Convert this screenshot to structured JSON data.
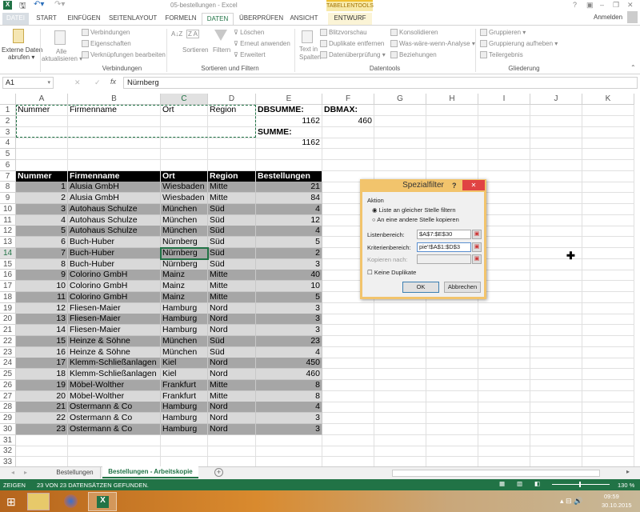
{
  "title": "05-bestellungen - Excel",
  "context_tab_group": "TABELLENTOOLS",
  "tabs": [
    "DATEI",
    "START",
    "EINFÜGEN",
    "SEITENLAYOUT",
    "FORMELN",
    "DATEN",
    "ÜBERPRÜFEN",
    "ANSICHT",
    "ENTWURF"
  ],
  "active_tab": "DATEN",
  "account": "Anmelden",
  "window_controls": [
    "?",
    "▣",
    "–",
    "❐",
    "✕"
  ],
  "ribbon": {
    "externe": [
      "Externe Daten",
      "abrufen ▾"
    ],
    "alle": [
      "Alle",
      "aktualisieren ▾"
    ],
    "verbindungen": [
      "Verbindungen",
      "Eigenschaften",
      "Verknüpfungen bearbeiten"
    ],
    "sort": [
      "Sortieren",
      "Filtern",
      "Löschen",
      "Erneut anwenden",
      "Erweitert"
    ],
    "text_in_spalten": [
      "Text in",
      "Spalten"
    ],
    "datentools": [
      "Blitzvorschau",
      "Duplikate entfernen",
      "Datenüberprüfung ▾",
      "Konsolidieren",
      "Was-wäre-wenn-Analyse ▾",
      "Beziehungen"
    ],
    "gliederung": [
      "Gruppieren ▾",
      "Gruppierung aufheben ▾",
      "Teilergebnis"
    ],
    "groups": [
      "Verbindungen",
      "Sortieren und Filtern",
      "Datentools",
      "Gliederung"
    ]
  },
  "formula_bar": {
    "name_box": "A1",
    "content": "Nürnberg"
  },
  "columns": [
    "A",
    "B",
    "C",
    "D",
    "E",
    "F",
    "G",
    "H",
    "I",
    "J",
    "K"
  ],
  "selected_cell": "C14",
  "cells": {
    "A1": "Nummer",
    "B1": "Firmenname",
    "C1": "Ort",
    "D1": "Region",
    "E1": "DBSUMME:",
    "F1": "DBMAX:",
    "E2": "1162",
    "F2": "460",
    "E3": "SUMME:",
    "E4": "1162",
    "A7": "Nummer",
    "B7": "Firmenname",
    "C7": "Ort",
    "D7": "Region",
    "E7": "Bestellungen"
  },
  "table_rows": [
    [
      "1",
      "Alusia GmbH",
      "Wiesbaden",
      "Mitte",
      "21"
    ],
    [
      "2",
      "Alusia GmbH",
      "Wiesbaden",
      "Mitte",
      "84"
    ],
    [
      "3",
      "Autohaus Schulze",
      "München",
      "Süd",
      "4"
    ],
    [
      "4",
      "Autohaus Schulze",
      "München",
      "Süd",
      "12"
    ],
    [
      "5",
      "Autohaus Schulze",
      "München",
      "Süd",
      "4"
    ],
    [
      "6",
      "Buch-Huber",
      "Nürnberg",
      "Süd",
      "5"
    ],
    [
      "7",
      "Buch-Huber",
      "Nürnberg",
      "Süd",
      "2"
    ],
    [
      "8",
      "Buch-Huber",
      "Nürnberg",
      "Süd",
      "3"
    ],
    [
      "9",
      "Colorino GmbH",
      "Mainz",
      "Mitte",
      "40"
    ],
    [
      "10",
      "Colorino GmbH",
      "Mainz",
      "Mitte",
      "10"
    ],
    [
      "11",
      "Colorino GmbH",
      "Mainz",
      "Mitte",
      "5"
    ],
    [
      "12",
      "Fliesen-Maier",
      "Hamburg",
      "Nord",
      "3"
    ],
    [
      "13",
      "Fliesen-Maier",
      "Hamburg",
      "Nord",
      "3"
    ],
    [
      "14",
      "Fliesen-Maier",
      "Hamburg",
      "Nord",
      "3"
    ],
    [
      "15",
      "Heinze & Söhne",
      "München",
      "Süd",
      "23"
    ],
    [
      "16",
      "Heinze & Söhne",
      "München",
      "Süd",
      "4"
    ],
    [
      "17",
      "Klemm-Schließanlagen",
      "Kiel",
      "Nord",
      "450"
    ],
    [
      "18",
      "Klemm-Schließanlagen",
      "Kiel",
      "Nord",
      "460"
    ],
    [
      "19",
      "Möbel-Wolther",
      "Frankfurt",
      "Mitte",
      "8"
    ],
    [
      "20",
      "Möbel-Wolther",
      "Frankfurt",
      "Mitte",
      "8"
    ],
    [
      "21",
      "Ostermann & Co",
      "Hamburg",
      "Nord",
      "4"
    ],
    [
      "22",
      "Ostermann & Co",
      "Hamburg",
      "Nord",
      "3"
    ],
    [
      "23",
      "Ostermann & Co",
      "Hamburg",
      "Nord",
      "3"
    ]
  ],
  "dialog": {
    "title": "Spezialfilter",
    "help": "?",
    "close": "✕",
    "section": "Aktion",
    "radio1": "Liste an gleicher Stelle filtern",
    "radio2": "An eine andere Stelle kopieren",
    "list_label": "Listenbereich:",
    "list_value": "$A$7:$E$30",
    "crit_label": "Kriterienbereich:",
    "crit_value": "pie'!$A$1:$D$3",
    "copy_label": "Kopieren nach:",
    "copy_value": "",
    "unique_label": "Keine Duplikate",
    "ok": "OK",
    "cancel": "Abbrechen"
  },
  "sheets": [
    "Bestellungen",
    "Bestellungen - Arbeitskopie"
  ],
  "active_sheet": "Bestellungen - Arbeitskopie",
  "status": {
    "mode": "ZEIGEN",
    "message": "23 VON 23 DATENSÄTZEN GEFUNDEN.",
    "zoom": "130 %"
  },
  "taskbar": {
    "time": "09:59",
    "date": "30.10.2015"
  },
  "colors": {
    "accent": "#217346",
    "table_dark": "#a6a6a6",
    "table_light": "#d9d9d9",
    "dialog_border": "#f2c46c"
  }
}
